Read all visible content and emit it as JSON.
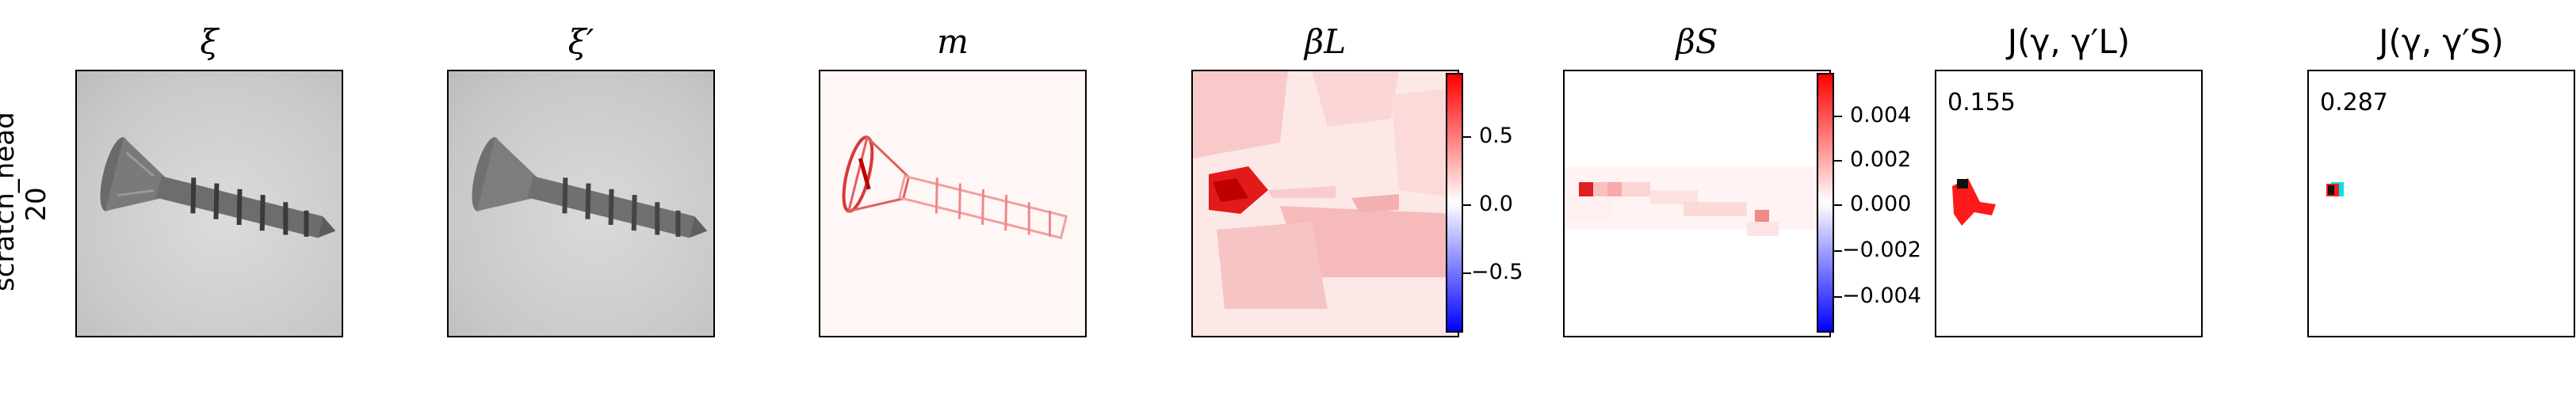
{
  "row_label": {
    "line1": "scratch_head",
    "line2": "20"
  },
  "panels": {
    "xi": {
      "title": "ξ"
    },
    "xi_prime": {
      "title": "ξ′"
    },
    "m": {
      "title": "m"
    },
    "beta_L": {
      "title": "βL"
    },
    "beta_S": {
      "title": "βS"
    },
    "J_L": {
      "title": "J(γ, γ′L)",
      "score": "0.155"
    },
    "J_S": {
      "title": "J(γ, γ′S)",
      "score": "0.287"
    }
  },
  "colorbars": {
    "beta_L": {
      "ticks": [
        "0.5",
        "0.0",
        "−0.5"
      ]
    },
    "beta_S": {
      "ticks": [
        "0.004",
        "0.002",
        "0.000",
        "−0.002",
        "−0.004"
      ]
    }
  },
  "colors": {
    "positive": "#ff0000",
    "negative": "#0000ff",
    "overlay_cyan": "#00e5e5"
  }
}
